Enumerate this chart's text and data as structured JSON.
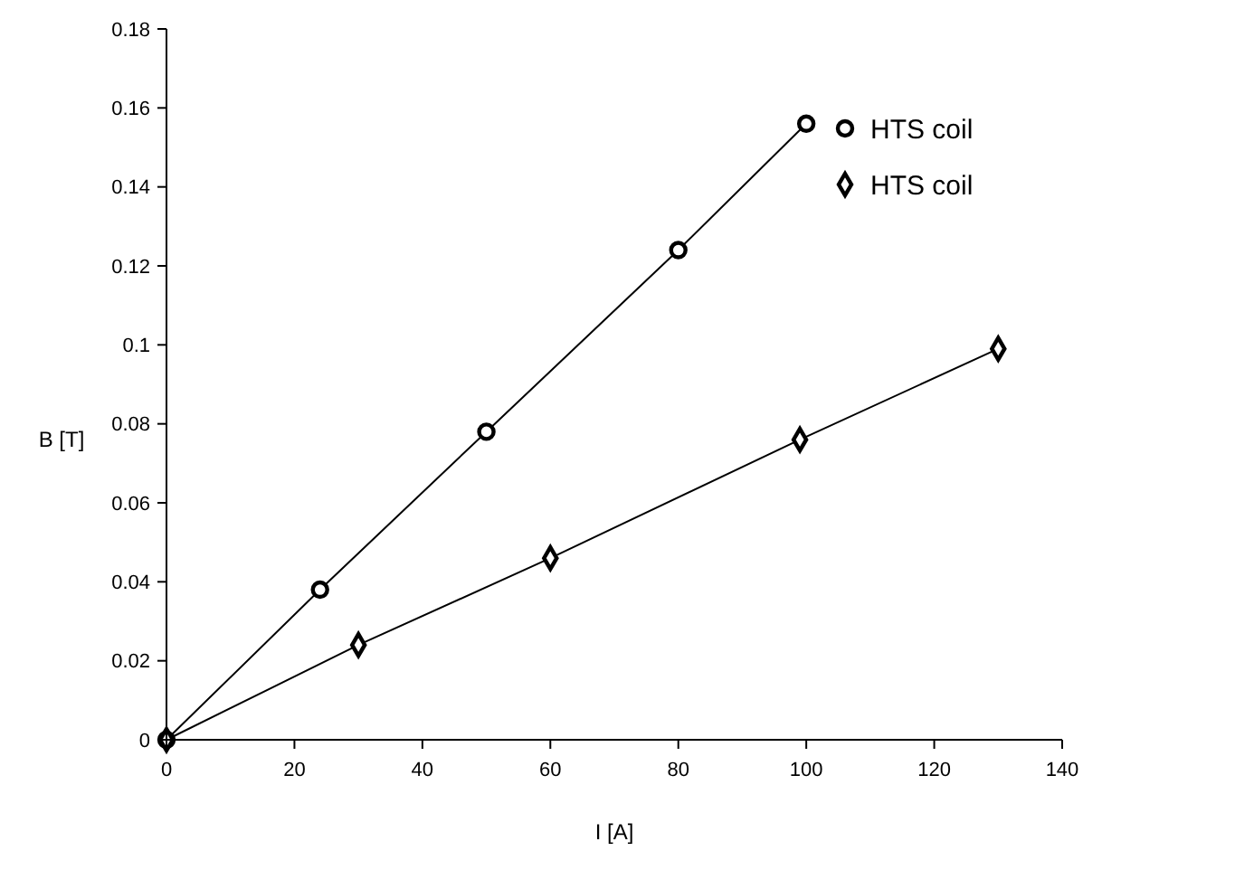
{
  "chart_data": {
    "type": "line",
    "xlabel": "I [A]",
    "ylabel": "B [T]",
    "xlim": [
      0,
      140
    ],
    "xticks": [
      0,
      20,
      40,
      60,
      80,
      100,
      120,
      140
    ],
    "ylim": [
      0,
      0.18
    ],
    "yticks": [
      0,
      0.02,
      0.04,
      0.06,
      0.08,
      0.1,
      0.12,
      0.14,
      0.16,
      0.18
    ],
    "grid": false,
    "legend": "top right",
    "line_style": "solid",
    "series": [
      {
        "name": "HTS coil",
        "color": "#000000",
        "marker": "circle",
        "x": [
          0,
          24,
          50,
          80,
          100
        ],
        "values": [
          0,
          0.038,
          0.078,
          0.124,
          0.156
        ]
      },
      {
        "name": "HTS coil",
        "color": "#000000",
        "marker": "diamond",
        "x": [
          0,
          30,
          60,
          99,
          130
        ],
        "values": [
          0,
          0.024,
          0.046,
          0.076,
          0.099
        ]
      }
    ]
  }
}
